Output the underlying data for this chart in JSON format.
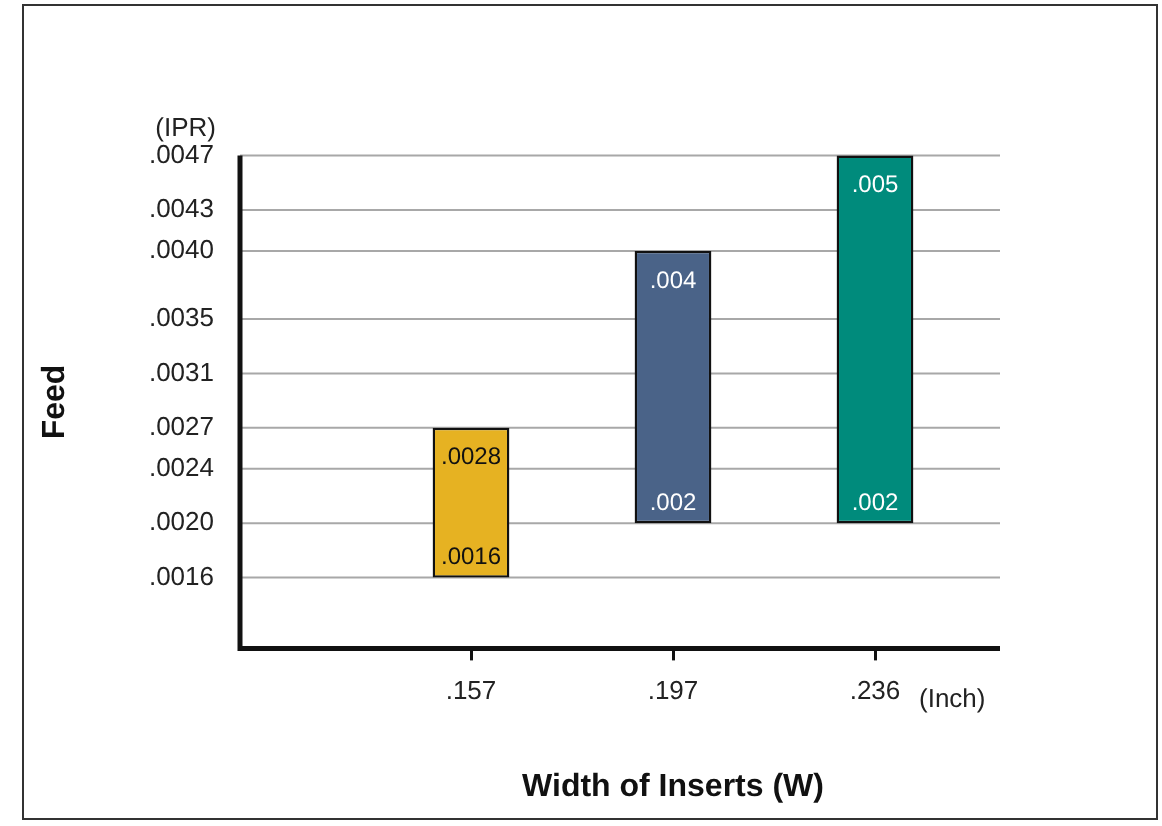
{
  "chart_data": {
    "type": "bar",
    "xlabel": "Width of Inserts (W)",
    "ylabel": "Feed",
    "categories": [
      ".157",
      ".197",
      ".236"
    ],
    "base": [
      0.0016,
      0.002,
      0.002
    ],
    "values": [
      0.0011,
      0.002,
      0.0027
    ],
    "colors": [
      "#e6b222",
      "#4a6388",
      "#008b7c"
    ],
    "ylim": [
      0.00108,
      0.0047
    ],
    "yticks": [
      {
        "value": 0.0016,
        "label": ".0016"
      },
      {
        "value": 0.002,
        "label": ".0020"
      },
      {
        "value": 0.0024,
        "label": ".0024"
      },
      {
        "value": 0.0027,
        "label": ".0027"
      },
      {
        "value": 0.0031,
        "label": ".0031"
      },
      {
        "value": 0.0035,
        "label": ".0035"
      },
      {
        "value": 0.004,
        "label": ".0040"
      },
      {
        "value": 0.0043,
        "label": ".0043"
      },
      {
        "value": 0.0047,
        "label": ".0047"
      }
    ],
    "grid": "y",
    "annotations": [
      "(IPR)",
      "(Inch)",
      {
        "text": ".0016",
        "x": ".157",
        "y": 0.0016
      },
      {
        "text": ".0028",
        "x": ".157",
        "y": 0.0027
      },
      {
        "text": ".004",
        "x": ".197",
        "y": 0.004
      },
      {
        "text": ".005",
        "x": ".236",
        "y": 0.0047
      },
      {
        "text": ".002",
        "x": ".197",
        "y": 0.002
      },
      {
        "text": ".002",
        "x": ".236",
        "y": 0.002
      }
    ]
  }
}
